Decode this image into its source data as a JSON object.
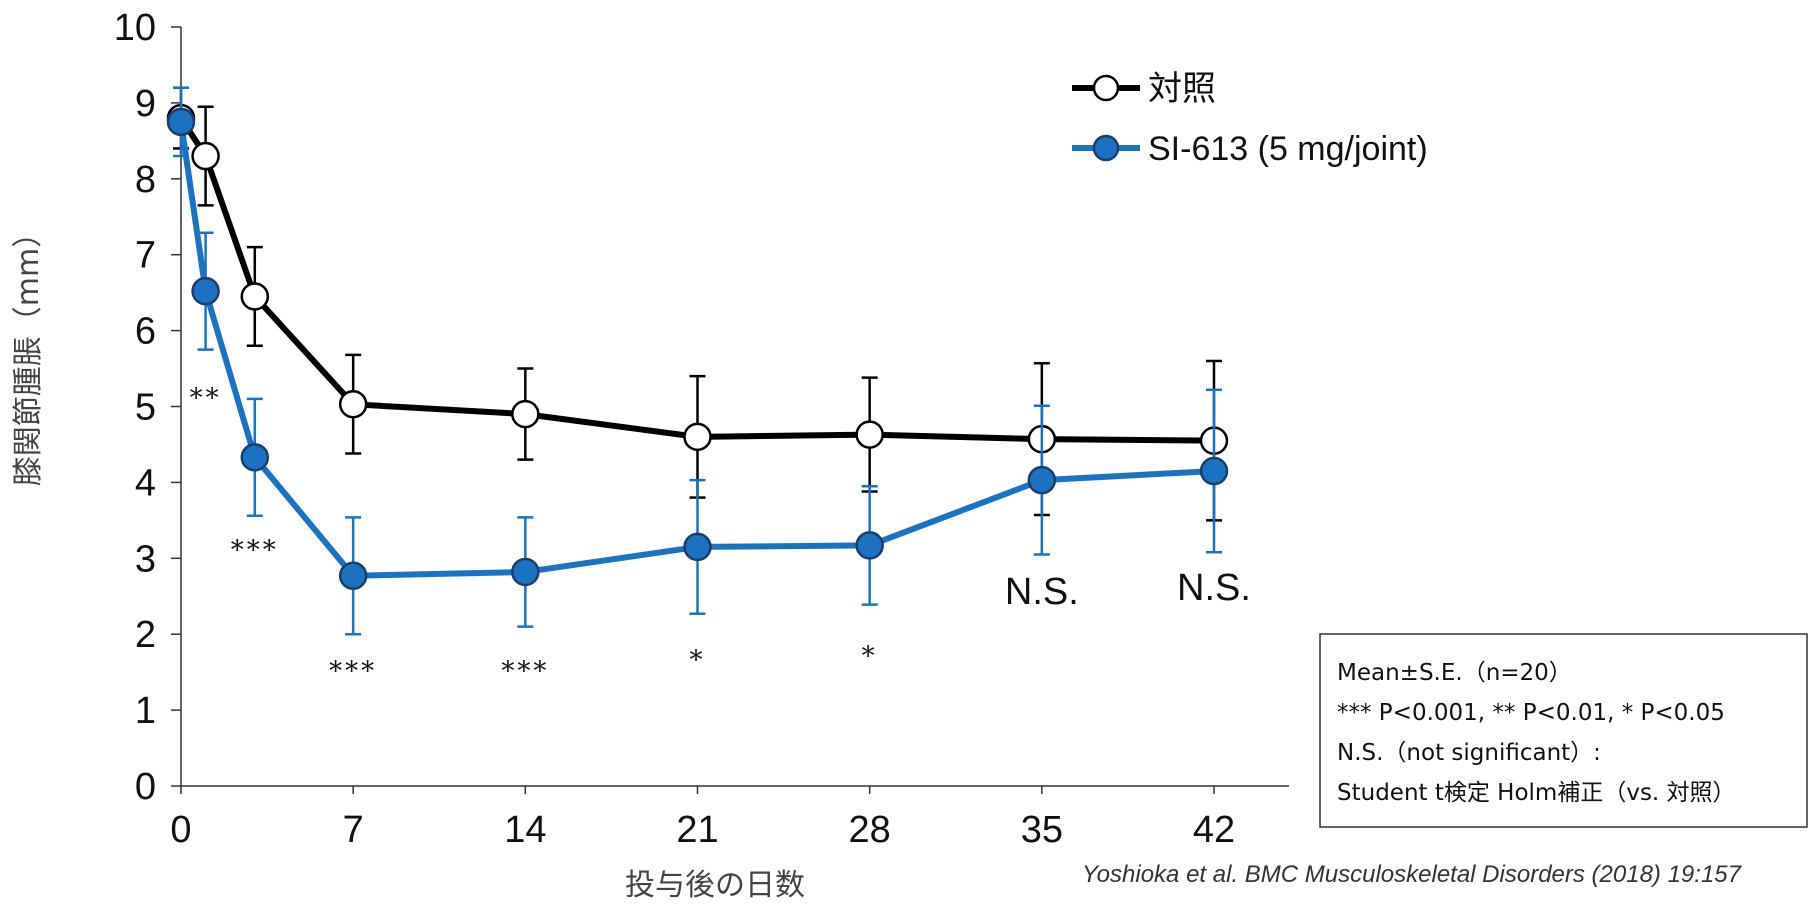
{
  "chart_data": {
    "type": "line",
    "title": "",
    "xlabel": "投与後の日数",
    "ylabel": "膝関節腫脹（mm）",
    "ylim": [
      0,
      10
    ],
    "xlim": [
      0,
      42
    ],
    "yticks": [
      "0",
      "1",
      "2",
      "3",
      "4",
      "5",
      "6",
      "7",
      "8",
      "9",
      "10"
    ],
    "xticks": [
      "0",
      "7",
      "14",
      "21",
      "28",
      "35",
      "42"
    ],
    "grid": false,
    "legend_position": "top-right",
    "series": [
      {
        "name": "対照",
        "color": "#000000",
        "marker": "open-circle",
        "x": [
          0,
          1,
          3,
          7,
          14,
          21,
          28,
          35,
          42
        ],
        "y": [
          8.8,
          8.3,
          6.45,
          5.03,
          4.9,
          4.6,
          4.63,
          4.57,
          4.55
        ],
        "se": [
          0.4,
          0.65,
          0.65,
          0.65,
          0.6,
          0.8,
          0.75,
          1.0,
          1.05
        ]
      },
      {
        "name": "SI-613 (5 mg/joint)",
        "color": "#1a73c2",
        "marker": "filled-circle",
        "x": [
          0,
          1,
          3,
          7,
          14,
          21,
          28,
          35,
          42
        ],
        "y": [
          8.75,
          6.52,
          4.33,
          2.77,
          2.82,
          3.15,
          3.17,
          4.03,
          4.15
        ],
        "se": [
          0.45,
          0.77,
          0.77,
          0.77,
          0.72,
          0.88,
          0.78,
          0.98,
          1.07
        ]
      }
    ],
    "annotations": [
      {
        "x": 1,
        "text": "**",
        "kind": "sig",
        "y": 5.0
      },
      {
        "x": 3,
        "text": "***",
        "kind": "sig",
        "y": 3.0
      },
      {
        "x": 7,
        "text": "***",
        "kind": "sig",
        "y": 1.4
      },
      {
        "x": 14,
        "text": "***",
        "kind": "sig",
        "y": 1.4
      },
      {
        "x": 21,
        "text": "*",
        "kind": "sig",
        "y": 1.55
      },
      {
        "x": 28,
        "text": "*",
        "kind": "sig",
        "y": 1.6
      },
      {
        "x": 35,
        "text": "N.S.",
        "kind": "ns",
        "y": 2.4
      },
      {
        "x": 42,
        "text": "N.S.",
        "kind": "ns",
        "y": 2.45
      }
    ]
  },
  "note_box": {
    "lines": [
      "Mean±S.E.（n=20）",
      "*** P<0.001, ** P<0.01, * P<0.05",
      "N.S.（not significant）:",
      "Student t検定 Holm補正（vs. 対照）"
    ]
  },
  "citation": "Yoshioka et al. BMC Musculoskeletal Disorders (2018) 19:157"
}
